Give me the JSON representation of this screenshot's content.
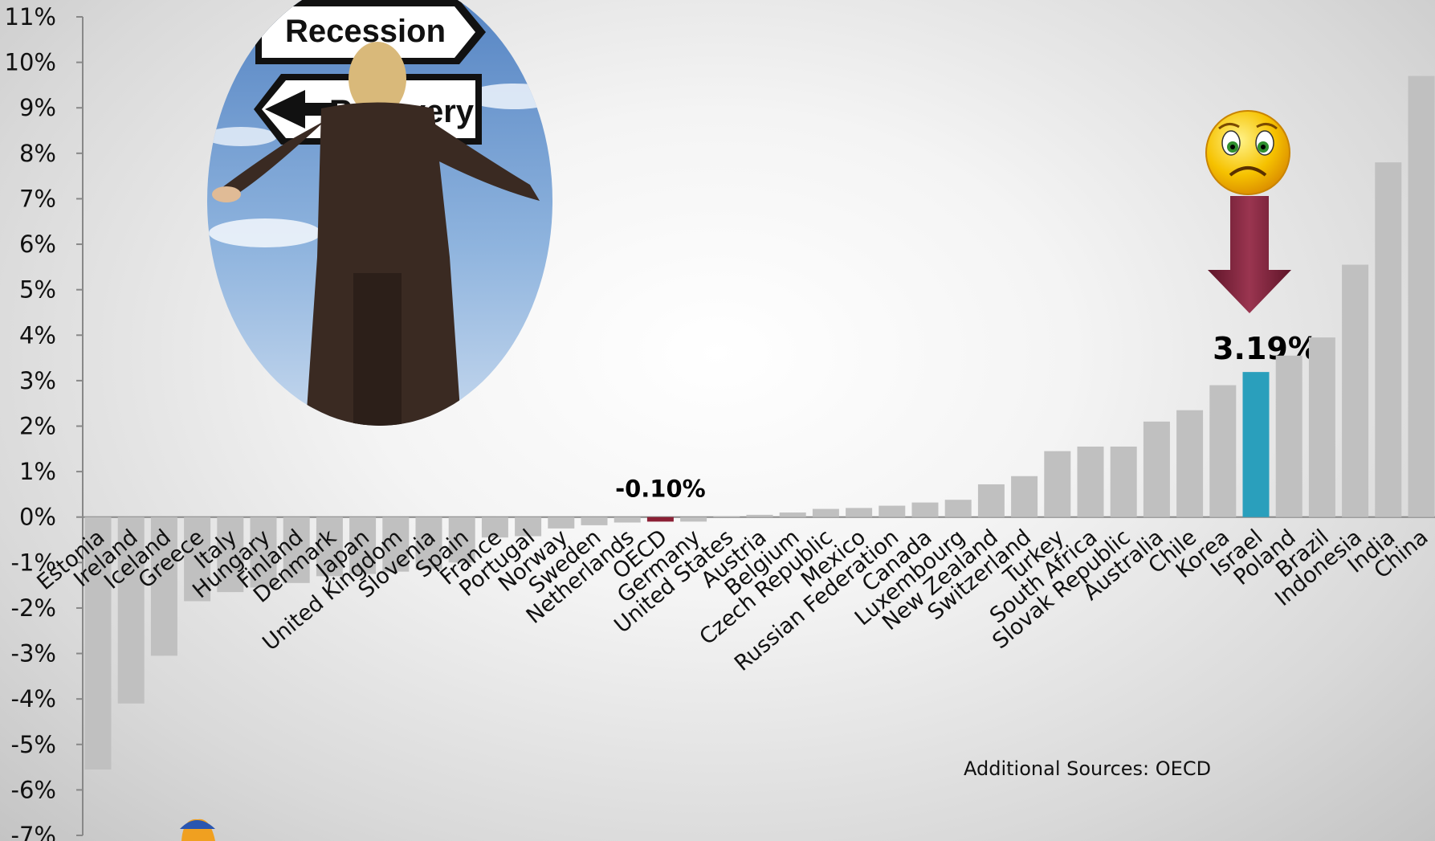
{
  "chart_data": {
    "type": "bar",
    "title": "",
    "xlabel": "",
    "ylabel": "",
    "ylim": [
      -7,
      11
    ],
    "yticks": [
      11,
      10,
      9,
      8,
      7,
      6,
      5,
      4,
      3,
      2,
      1,
      0,
      -1,
      -2,
      -3,
      -4,
      -5,
      -6,
      -7
    ],
    "ytick_labels": [
      "11%",
      "10%",
      "9%",
      "8%",
      "7%",
      "6%",
      "5%",
      "4%",
      "3%",
      "2%",
      "1%",
      "0%",
      "-1%",
      "-2%",
      "-3%",
      "-4%",
      "-5%",
      "-6%",
      "-7%"
    ],
    "grid": false,
    "legend": "none",
    "categories": [
      "Estonia",
      "Ireland",
      "Iceland",
      "Greece",
      "Italy",
      "Hungary",
      "Finland",
      "Denmark",
      "Japan",
      "United Kingdom",
      "Slovenia",
      "Spain",
      "France",
      "Portugal",
      "Norway",
      "Sweden",
      "Netherlands",
      "OECD",
      "Germany",
      "United States",
      "Austria",
      "Belgium",
      "Czech Republic",
      "Mexico",
      "Russian Federation",
      "Canada",
      "Luxembourg",
      "New Zealand",
      "Switzerland",
      "Turkey",
      "South Africa",
      "Slovak Republic",
      "Australia",
      "Chile",
      "Korea",
      "Israel",
      "Poland",
      "Brazil",
      "Indonesia",
      "India",
      "China"
    ],
    "values": [
      -5.55,
      -4.1,
      -3.05,
      -1.85,
      -1.65,
      -1.55,
      -1.45,
      -1.3,
      -1.25,
      -1.2,
      -1.15,
      -1.0,
      -0.45,
      -0.42,
      -0.25,
      -0.18,
      -0.12,
      -0.1,
      -0.1,
      0.02,
      0.05,
      0.1,
      0.18,
      0.2,
      0.25,
      0.32,
      0.38,
      0.72,
      0.9,
      1.45,
      1.55,
      1.55,
      2.1,
      2.35,
      2.9,
      3.19,
      3.55,
      3.95,
      5.55,
      7.8,
      9.7
    ],
    "highlights": [
      {
        "category": "OECD",
        "label": "-0.10%",
        "color": "#8b2035"
      },
      {
        "category": "Israel",
        "label": "3.19%",
        "color": "#2a9fbc"
      }
    ],
    "annotations": [
      "Additional Sources: OECD"
    ],
    "image_text": [
      "Recession",
      "Recovery"
    ]
  },
  "colors": {
    "bar": "#c0c0c0",
    "axis": "#888888",
    "arrow": "#7a1f36",
    "face": "#f4b400"
  },
  "icons": [
    "recession-recovery-photo",
    "sad-face-icon",
    "down-arrow-icon",
    "mascot-icon"
  ]
}
